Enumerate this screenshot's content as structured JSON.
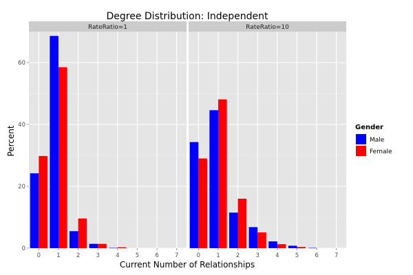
{
  "chart_data": {
    "type": "bar",
    "title": "Degree Distribution: Independent",
    "xlabel": "Current Number of Relationships",
    "ylabel": "Percent",
    "categories": [
      "0",
      "1",
      "2",
      "3",
      "4",
      "5",
      "6",
      "7"
    ],
    "ylim": [
      0,
      70
    ],
    "yticks": [
      0,
      20,
      40,
      60
    ],
    "grid": true,
    "legend": {
      "title": "Gender",
      "placement": "right",
      "entries": [
        {
          "name": "Male",
          "color": "#0000ff"
        },
        {
          "name": "Female",
          "color": "#ff0000"
        }
      ]
    },
    "panels": [
      {
        "label": "RateRatio=1",
        "series": [
          {
            "name": "Male",
            "values": [
              24.2,
              68.6,
              5.5,
              1.4,
              0.1,
              0,
              0,
              0
            ]
          },
          {
            "name": "Female",
            "values": [
              29.8,
              58.5,
              9.6,
              1.4,
              0.3,
              0,
              0,
              0
            ]
          }
        ]
      },
      {
        "label": "RateRatio=10",
        "series": [
          {
            "name": "Male",
            "values": [
              34.3,
              44.6,
              11.5,
              6.8,
              2.2,
              0.8,
              0.1,
              0
            ]
          },
          {
            "name": "Female",
            "values": [
              29.0,
              48.1,
              16.0,
              5.1,
              1.3,
              0.4,
              0,
              0
            ]
          }
        ]
      }
    ],
    "colors": {
      "panel_bg": "#e5e5e5",
      "strip_bg": "#cccccc",
      "grid_major": "#ffffff",
      "grid_minor": "#f2f2f2"
    }
  }
}
